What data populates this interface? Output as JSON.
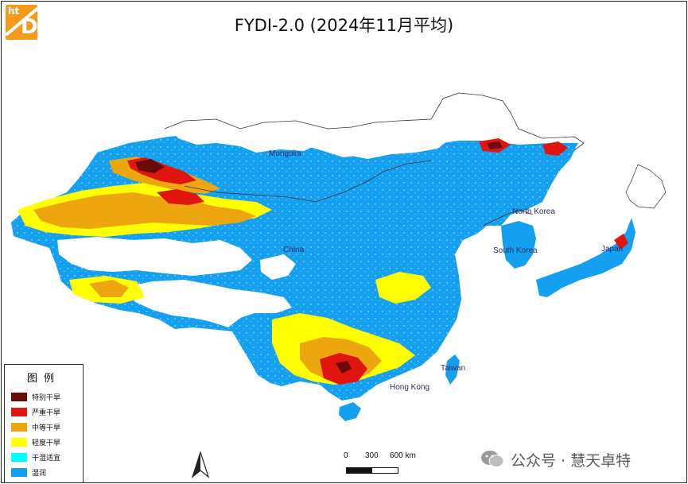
{
  "title": "FYDI-2.0 (2024年11月平均)",
  "logo": {
    "small": "ht",
    "big": "D"
  },
  "places": [
    {
      "name": "Mongolia",
      "key": "mongolia"
    },
    {
      "name": "China",
      "key": "china"
    },
    {
      "name": "North Korea",
      "key": "north-korea"
    },
    {
      "name": "South Korea",
      "key": "south-korea"
    },
    {
      "name": "Japan",
      "key": "japan"
    },
    {
      "name": "Taiwan",
      "key": "taiwan"
    },
    {
      "name": "Hong Kong",
      "key": "hong-kong"
    }
  ],
  "legend": {
    "title": "图例",
    "items": [
      {
        "label": "特别干旱",
        "color": "#6b0a0a"
      },
      {
        "label": "严重干旱",
        "color": "#e0160e"
      },
      {
        "label": "中等干旱",
        "color": "#eda60e"
      },
      {
        "label": "轻度干旱",
        "color": "#ffff00"
      },
      {
        "label": "干湿适宜",
        "color": "#00ffff"
      },
      {
        "label": "湿润",
        "color": "#14a0f0"
      }
    ]
  },
  "scale": {
    "ticks": [
      "0",
      "300",
      "600 km"
    ]
  },
  "watermark": "公众号 · 慧天卓特",
  "colors": {
    "wet": "#14a0f0",
    "suitable": "#00ffff",
    "mild": "#ffff00",
    "moderate": "#eda60e",
    "severe": "#e0160e",
    "extreme": "#6b0a0a"
  }
}
